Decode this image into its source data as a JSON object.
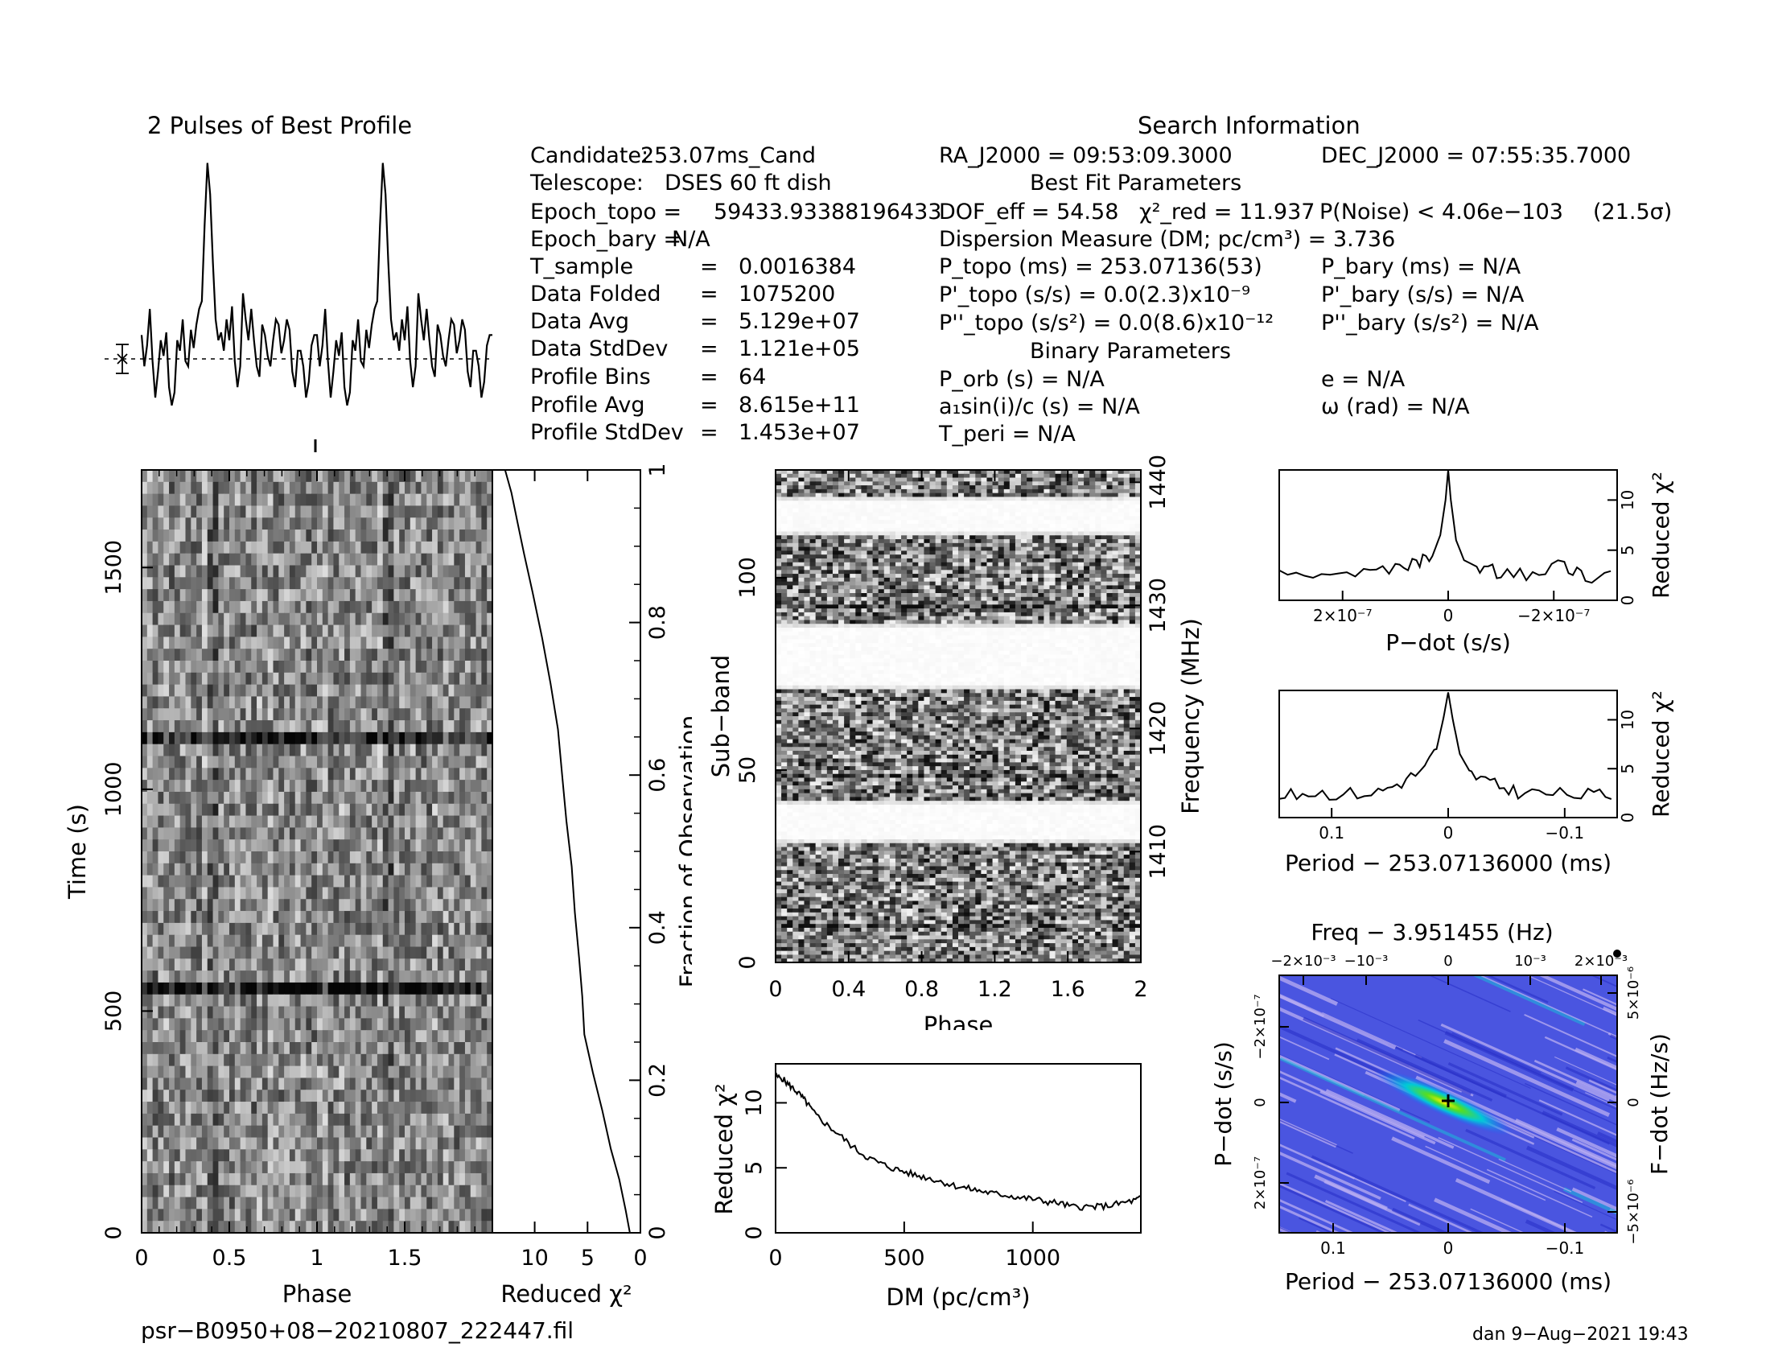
{
  "profile": {
    "title": "2 Pulses of Best Profile"
  },
  "info": {
    "header": "Search Information",
    "fit_header": "Best Fit Parameters",
    "binary_header": "Binary Parameters",
    "col1": [
      {
        "label": "Candidate:",
        "value": "253.07ms_Cand"
      },
      {
        "label": "Telescope:",
        "value": "DSES 60 ft dish"
      },
      {
        "label": "Epoch_topo =",
        "value": "59433.93388196433"
      },
      {
        "label": "Epoch_bary =",
        "value": "N/A"
      },
      {
        "label": "T_sample",
        "value": "0.0016384"
      },
      {
        "label": "Data Folded",
        "value": "1075200"
      },
      {
        "label": "Data Avg",
        "value": "5.129e+07"
      },
      {
        "label": "Data StdDev",
        "value": "1.121e+05"
      },
      {
        "label": "Profile Bins",
        "value": "64"
      },
      {
        "label": "Profile Avg",
        "value": "8.615e+11"
      },
      {
        "label": "Profile StdDev",
        "value": "1.453e+07"
      }
    ],
    "ra": "RA_J2000 = 09:53:09.3000",
    "dec": "DEC_J2000 = 07:55:35.7000",
    "dof": "DOF_eff = 54.58",
    "chi2": "χ²_red = 11.937",
    "pnoise": "P(Noise) < 4.06e−103",
    "sigma": "(21.5σ)",
    "dm": "Dispersion Measure (DM; pc/cm³) = 3.736",
    "ptopo": "P_topo (ms) = 253.07136(53)",
    "pbary": "P_bary (ms) = N/A",
    "pdtopo": "P'_topo (s/s) = 0.0(2.3)x10⁻⁹",
    "pdbary": "P'_bary (s/s) = N/A",
    "pddtopo": "P''_topo (s/s²) = 0.0(8.6)x10⁻¹²",
    "pddbary": "P''_bary (s/s²) = N/A",
    "porb": "P_orb (s) = N/A",
    "ecc": "e = N/A",
    "asini": "a₁sin(i)/c (s) = N/A",
    "omega": "ω (rad) = N/A",
    "tperi": "T_peri = N/A"
  },
  "footer": {
    "filename": "psr−B0950+08−20210807_222447.fil",
    "stamp": "dan  9−Aug−2021 19:43"
  },
  "chart_data": [
    {
      "type": "line",
      "title": "2 Pulses of Best Profile",
      "x": [
        0,
        1,
        2,
        3,
        4,
        5,
        6,
        7,
        8,
        9,
        10,
        11,
        12,
        13,
        14,
        15,
        16,
        17,
        18,
        19,
        20,
        21,
        22,
        23,
        24,
        25,
        26,
        27,
        28,
        29,
        30,
        31,
        32,
        33,
        34,
        35,
        36,
        37,
        38,
        39,
        40,
        41,
        42,
        43,
        44,
        45,
        46,
        47,
        48,
        49,
        50,
        51,
        52,
        53,
        54,
        55,
        56,
        57,
        58,
        59,
        60,
        61,
        62,
        63,
        64,
        65,
        66,
        67,
        68,
        69,
        70,
        71,
        72,
        73,
        74,
        75,
        76,
        77,
        78,
        79,
        80,
        81,
        82,
        83,
        84,
        85,
        86,
        87,
        88,
        89,
        90,
        91,
        92,
        93,
        94,
        95,
        96,
        97,
        98,
        99,
        100,
        101,
        102,
        103,
        104,
        105,
        106,
        107,
        108,
        109,
        110,
        111,
        112,
        113,
        114,
        115,
        116,
        117,
        118,
        119,
        120,
        121,
        122,
        123,
        124,
        125,
        126,
        127,
        128
      ],
      "values": [
        0.32,
        0.2,
        0.28,
        0.42,
        0.22,
        0.08,
        0.18,
        0.3,
        0.24,
        0.33,
        0.12,
        0.05,
        0.1,
        0.3,
        0.26,
        0.38,
        0.22,
        0.2,
        0.34,
        0.27,
        0.36,
        0.42,
        0.45,
        0.74,
        0.98,
        0.86,
        0.6,
        0.38,
        0.3,
        0.33,
        0.26,
        0.38,
        0.3,
        0.43,
        0.22,
        0.12,
        0.2,
        0.48,
        0.38,
        0.3,
        0.42,
        0.3,
        0.2,
        0.16,
        0.36,
        0.32,
        0.24,
        0.2,
        0.3,
        0.38,
        0.36,
        0.25,
        0.3,
        0.38,
        0.34,
        0.18,
        0.12,
        0.26,
        0.26,
        0.2,
        0.08,
        0.14,
        0.28,
        0.32,
        0.32,
        0.2,
        0.28,
        0.42,
        0.22,
        0.08,
        0.18,
        0.3,
        0.24,
        0.33,
        0.12,
        0.05,
        0.1,
        0.3,
        0.26,
        0.38,
        0.22,
        0.2,
        0.34,
        0.27,
        0.36,
        0.42,
        0.45,
        0.74,
        0.98,
        0.86,
        0.6,
        0.38,
        0.3,
        0.33,
        0.26,
        0.38,
        0.3,
        0.43,
        0.22,
        0.12,
        0.2,
        0.48,
        0.38,
        0.3,
        0.42,
        0.3,
        0.2,
        0.16,
        0.36,
        0.32,
        0.24,
        0.2,
        0.3,
        0.38,
        0.36,
        0.25,
        0.3,
        0.38,
        0.34,
        0.18,
        0.12,
        0.26,
        0.26,
        0.2,
        0.08,
        0.14,
        0.28,
        0.32,
        0.32
      ]
    },
    {
      "type": "heatmap",
      "xlabel": "Phase",
      "ylabel": "Time (s)",
      "xlim": [
        0,
        2
      ],
      "ylim": [
        0,
        1720
      ],
      "x_ticks": [
        "0",
        "0.5",
        "1",
        "1.5"
      ],
      "y_ticks": [
        "0",
        "500",
        "1000",
        "1500"
      ],
      "colormap": "grayscale"
    },
    {
      "type": "line",
      "xlabel": "Reduced χ²",
      "ylabel": "Fraction of Observation",
      "xlim": [
        14,
        0
      ],
      "ylim": [
        0,
        1
      ],
      "x_ticks": [
        "10",
        "5",
        "0"
      ],
      "y_ticks": [
        "0",
        "0.2",
        "0.4",
        "0.6",
        "0.8",
        "1"
      ],
      "points": [
        [
          1.0,
          0.0
        ],
        [
          1.4,
          0.03
        ],
        [
          2.0,
          0.07
        ],
        [
          2.8,
          0.11
        ],
        [
          3.6,
          0.16
        ],
        [
          4.5,
          0.21
        ],
        [
          5.3,
          0.26
        ],
        [
          5.5,
          0.31
        ],
        [
          5.8,
          0.36
        ],
        [
          6.2,
          0.42
        ],
        [
          6.5,
          0.48
        ],
        [
          7.0,
          0.54
        ],
        [
          7.4,
          0.6
        ],
        [
          7.8,
          0.66
        ],
        [
          8.5,
          0.72
        ],
        [
          9.3,
          0.78
        ],
        [
          10.2,
          0.84
        ],
        [
          11.0,
          0.89
        ],
        [
          11.6,
          0.93
        ],
        [
          12.2,
          0.97
        ],
        [
          12.8,
          1.0
        ]
      ]
    },
    {
      "type": "heatmap",
      "xlabel": "Phase",
      "ylabel": "Sub−band",
      "y2label": "Frequency (MHz)",
      "xlim": [
        0,
        2
      ],
      "ylim": [
        0,
        128
      ],
      "x_ticks": [
        "0",
        "0.4",
        "0.8",
        "1.2",
        "1.6",
        "2"
      ],
      "y_ticks": [
        "0",
        "50",
        "100"
      ],
      "y2_ticks": [
        "1410",
        "1420",
        "1430",
        "1440"
      ],
      "colormap": "grayscale"
    },
    {
      "type": "line",
      "xlabel": "DM (pc/cm³)",
      "ylabel": "Reduced χ²",
      "xlim": [
        0,
        1420
      ],
      "ylim": [
        0,
        13
      ],
      "x_ticks": [
        "0",
        "500",
        "1000"
      ],
      "y_ticks": [
        "0",
        "5",
        "10"
      ],
      "points": [
        [
          0,
          12.0
        ],
        [
          25,
          11.9
        ],
        [
          50,
          11.4
        ],
        [
          75,
          11.0
        ],
        [
          100,
          10.5
        ],
        [
          125,
          9.9
        ],
        [
          150,
          9.2
        ],
        [
          200,
          8.3
        ],
        [
          250,
          7.5
        ],
        [
          300,
          6.6
        ],
        [
          350,
          5.9
        ],
        [
          400,
          5.4
        ],
        [
          450,
          5.0
        ],
        [
          500,
          4.7
        ],
        [
          550,
          4.4
        ],
        [
          600,
          4.2
        ],
        [
          650,
          3.9
        ],
        [
          700,
          3.6
        ],
        [
          750,
          3.4
        ],
        [
          800,
          3.2
        ],
        [
          850,
          3.0
        ],
        [
          900,
          2.9
        ],
        [
          950,
          2.7
        ],
        [
          1000,
          2.6
        ],
        [
          1050,
          2.4
        ],
        [
          1100,
          2.3
        ],
        [
          1150,
          2.0
        ],
        [
          1200,
          2.0
        ],
        [
          1250,
          2.0
        ],
        [
          1300,
          2.1
        ],
        [
          1350,
          2.3
        ],
        [
          1400,
          2.5
        ],
        [
          1420,
          2.7
        ]
      ]
    },
    {
      "type": "line",
      "xlabel": "P−dot (s/s)",
      "ylabel": "Reduced χ²",
      "xlim": [
        3.2e-07,
        -3.2e-07
      ],
      "ylim": [
        0,
        13
      ],
      "x_ticks": [
        "2×10⁻⁷",
        "0",
        "−2×10⁻⁷"
      ],
      "y_ticks": [
        "0",
        "5",
        "10"
      ],
      "points": [
        [
          3.2e-07,
          2.4
        ],
        [
          2.4e-07,
          2.8
        ],
        [
          1.6e-07,
          2.6
        ],
        [
          1e-07,
          3.2
        ],
        [
          6e-08,
          3.6
        ],
        [
          3e-08,
          4.4
        ],
        [
          1.5e-08,
          6.5
        ],
        [
          5e-09,
          10.0
        ],
        [
          0,
          13.0
        ],
        [
          -5e-09,
          10.0
        ],
        [
          -1.5e-08,
          6.0
        ],
        [
          -3e-08,
          4.0
        ],
        [
          -6e-08,
          3.2
        ],
        [
          -1e-07,
          2.7
        ],
        [
          -1.6e-07,
          2.5
        ],
        [
          -2.2e-07,
          3.6
        ],
        [
          -2.6e-07,
          2.4
        ],
        [
          -3.2e-07,
          2.6
        ]
      ]
    },
    {
      "type": "line",
      "xlabel": "Period − 253.07136000 (ms)",
      "ylabel": "Reduced χ²",
      "xlim": [
        0.145,
        -0.145
      ],
      "ylim": [
        0,
        13
      ],
      "x_ticks": [
        "0.1",
        "0",
        "−0.1"
      ],
      "y_ticks": [
        "0",
        "5",
        "10"
      ],
      "points": [
        [
          0.145,
          2.0
        ],
        [
          0.12,
          2.6
        ],
        [
          0.09,
          2.4
        ],
        [
          0.06,
          2.6
        ],
        [
          0.04,
          3.6
        ],
        [
          0.02,
          5.0
        ],
        [
          0.01,
          7.0
        ],
        [
          0.004,
          10.2
        ],
        [
          0.0,
          12.8
        ],
        [
          -0.004,
          10.0
        ],
        [
          -0.01,
          6.5
        ],
        [
          -0.02,
          4.4
        ],
        [
          -0.04,
          3.3
        ],
        [
          -0.06,
          2.6
        ],
        [
          -0.09,
          2.4
        ],
        [
          -0.12,
          2.3
        ],
        [
          -0.145,
          2.3
        ]
      ]
    },
    {
      "type": "heatmap",
      "title": "Freq − 3.951455 (Hz)",
      "xlabel": "Period − 253.07136000 (ms)",
      "ylabel": "P−dot (s/s)",
      "y2label": "F−dot (Hz/s)",
      "xlim": [
        0.145,
        -0.145
      ],
      "ylim": [
        3.2e-07,
        -3.2e-07
      ],
      "x_ticks": [
        "0.1",
        "0",
        "−0.1"
      ],
      "x2_ticks": [
        "−2×10⁻³",
        "−10⁻³",
        "0",
        "10⁻³",
        "2×10⁻³"
      ],
      "y_ticks": [
        "−2×10⁻⁷",
        "0",
        "2×10⁻⁷"
      ],
      "y2_ticks": [
        "5×10⁻⁶",
        "0",
        "−5×10⁻⁶"
      ],
      "colormap": "blue-cyan-green"
    }
  ]
}
